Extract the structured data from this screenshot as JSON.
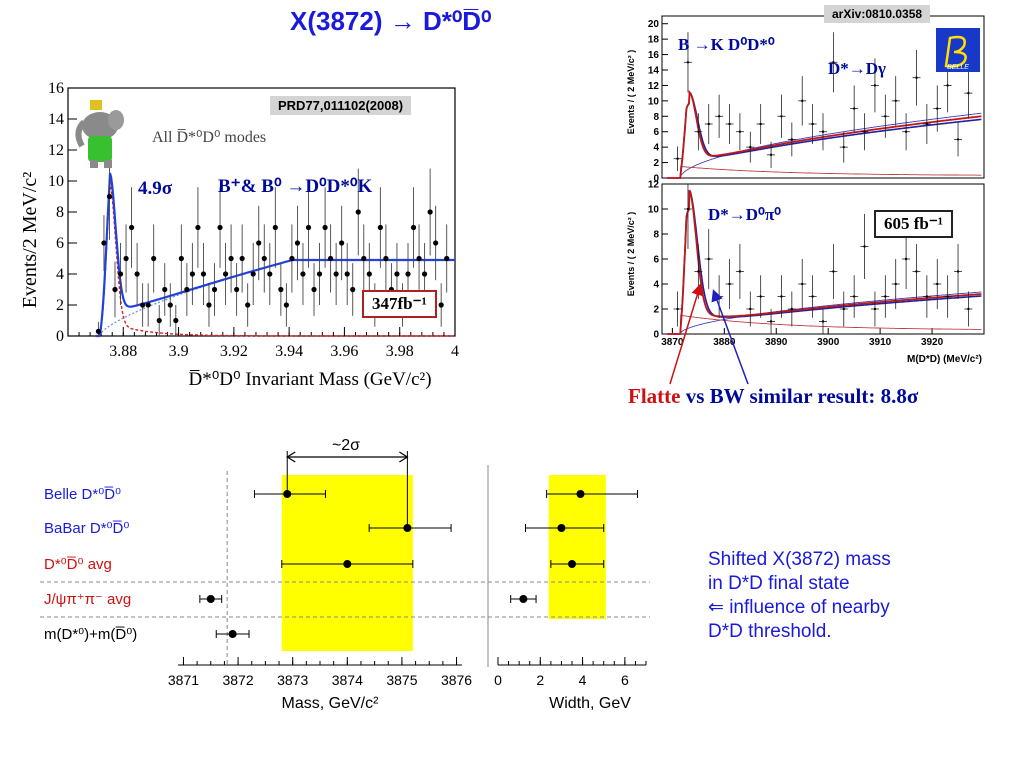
{
  "slide": {
    "title": "X(3872) → D*⁰D̅⁰",
    "conclusion_flatte": "Flatte",
    "conclusion_rest": " vs BW similar result: 8.8σ",
    "note_lines": [
      "Shifted X(3872) mass",
      "in D*D final state",
      "⇐ influence of nearby",
      "D*D threshold."
    ]
  },
  "chart_data": [
    {
      "id": "babar",
      "type": "scatter",
      "reference": "PRD77,011102(2008)",
      "legend_text": "All D̅*⁰D⁰ modes",
      "significance": "4.9σ",
      "channel": "B⁺& B⁰ →D⁰D*⁰K",
      "luminosity": "347fb⁻¹",
      "xlabel": "D̅*⁰D⁰ Invariant Mass (GeV/c²)",
      "ylabel": "Events/2 MeV/c²",
      "xlim": [
        3.86,
        4.0
      ],
      "ylim": [
        0,
        16
      ],
      "xticks": [
        "3.88",
        "3.9",
        "3.92",
        "3.94",
        "3.96",
        "3.98",
        "4"
      ],
      "yticks": [
        "0",
        "2",
        "4",
        "6",
        "8",
        "10",
        "12",
        "14",
        "16"
      ],
      "points": [
        [
          3.871,
          0.3,
          0.6
        ],
        [
          3.873,
          6.0,
          1.8
        ],
        [
          3.875,
          9.0,
          2.8
        ],
        [
          3.877,
          3.0,
          1.8
        ],
        [
          3.879,
          4.0,
          2.0
        ],
        [
          3.881,
          5.0,
          2.2
        ],
        [
          3.883,
          7.0,
          2.6
        ],
        [
          3.885,
          4.0,
          2.0
        ],
        [
          3.887,
          2.0,
          1.4
        ],
        [
          3.889,
          2.0,
          1.4
        ],
        [
          3.891,
          5.0,
          2.2
        ],
        [
          3.893,
          1.0,
          1.0
        ],
        [
          3.895,
          3.0,
          1.7
        ],
        [
          3.897,
          2.0,
          1.4
        ],
        [
          3.899,
          1.0,
          1.0
        ],
        [
          3.901,
          5.0,
          2.2
        ],
        [
          3.903,
          3.0,
          1.7
        ],
        [
          3.905,
          4.0,
          2.0
        ],
        [
          3.907,
          7.0,
          2.6
        ],
        [
          3.909,
          4.0,
          2.0
        ],
        [
          3.911,
          2.0,
          1.4
        ],
        [
          3.913,
          3.0,
          1.7
        ],
        [
          3.915,
          7.0,
          2.6
        ],
        [
          3.917,
          4.0,
          2.0
        ],
        [
          3.919,
          5.0,
          2.2
        ],
        [
          3.921,
          3.0,
          1.7
        ],
        [
          3.923,
          5.0,
          2.2
        ],
        [
          3.925,
          2.0,
          1.4
        ],
        [
          3.927,
          4.0,
          2.0
        ],
        [
          3.929,
          6.0,
          2.4
        ],
        [
          3.931,
          5.0,
          2.2
        ],
        [
          3.933,
          4.0,
          2.0
        ],
        [
          3.935,
          7.0,
          2.6
        ],
        [
          3.937,
          3.0,
          1.7
        ],
        [
          3.939,
          2.0,
          1.4
        ],
        [
          3.941,
          5.0,
          2.2
        ],
        [
          3.943,
          6.0,
          2.4
        ],
        [
          3.945,
          4.0,
          2.0
        ],
        [
          3.947,
          7.0,
          2.6
        ],
        [
          3.949,
          3.0,
          1.7
        ],
        [
          3.951,
          4.0,
          2.0
        ],
        [
          3.953,
          7.0,
          2.6
        ],
        [
          3.955,
          5.0,
          2.2
        ],
        [
          3.957,
          4.0,
          2.0
        ],
        [
          3.959,
          6.0,
          2.4
        ],
        [
          3.961,
          4.0,
          2.0
        ],
        [
          3.963,
          3.0,
          1.7
        ],
        [
          3.965,
          8.0,
          2.8
        ],
        [
          3.967,
          5.0,
          2.2
        ],
        [
          3.969,
          4.0,
          2.0
        ],
        [
          3.971,
          2.0,
          1.4
        ],
        [
          3.973,
          7.0,
          2.6
        ],
        [
          3.975,
          5.0,
          2.2
        ],
        [
          3.977,
          3.0,
          1.7
        ],
        [
          3.979,
          4.0,
          2.0
        ],
        [
          3.981,
          2.0,
          1.4
        ],
        [
          3.983,
          4.0,
          2.0
        ],
        [
          3.985,
          7.0,
          2.6
        ],
        [
          3.987,
          5.0,
          2.2
        ],
        [
          3.989,
          4.0,
          2.0
        ],
        [
          3.991,
          8.0,
          2.8
        ],
        [
          3.993,
          6.0,
          2.4
        ],
        [
          3.995,
          2.0,
          1.4
        ],
        [
          3.997,
          5.0,
          2.2
        ]
      ],
      "colors": {
        "fit": "#2040e0",
        "signal": "#e02020",
        "background": "#7090e0",
        "total_peak": "#8020a0"
      }
    },
    {
      "id": "belle-dgamma",
      "type": "scatter",
      "reference": "arXiv:0810.0358",
      "logo_text": "BELLE",
      "channel": "B →K D⁰D*⁰",
      "subchannel": "D*→Dγ",
      "ylabel": "Events / ( 2 MeV/c² )",
      "xlim": [
        3868,
        3930
      ],
      "ylim": [
        0,
        21
      ],
      "yticks": [
        "0",
        "2",
        "4",
        "6",
        "8",
        "10",
        "12",
        "14",
        "16",
        "18",
        "20"
      ],
      "points": [
        [
          3871,
          2.5,
          1.6
        ],
        [
          3873,
          15,
          3.9
        ],
        [
          3875,
          6,
          2.4
        ],
        [
          3877,
          7,
          2.6
        ],
        [
          3879,
          8,
          2.8
        ],
        [
          3881,
          7,
          2.6
        ],
        [
          3883,
          6,
          2.4
        ],
        [
          3885,
          4,
          2.0
        ],
        [
          3887,
          7,
          2.6
        ],
        [
          3889,
          3,
          1.7
        ],
        [
          3891,
          8,
          2.8
        ],
        [
          3893,
          5,
          2.2
        ],
        [
          3895,
          10,
          3.2
        ],
        [
          3897,
          7,
          2.6
        ],
        [
          3899,
          6,
          2.4
        ],
        [
          3901,
          15,
          3.9
        ],
        [
          3903,
          4,
          2.0
        ],
        [
          3905,
          9,
          3.0
        ],
        [
          3907,
          6,
          2.4
        ],
        [
          3909,
          12,
          3.5
        ],
        [
          3911,
          8,
          2.8
        ],
        [
          3913,
          10,
          3.2
        ],
        [
          3915,
          6,
          2.4
        ],
        [
          3917,
          13,
          3.6
        ],
        [
          3919,
          7,
          2.6
        ],
        [
          3921,
          9,
          3.0
        ],
        [
          3923,
          12,
          3.5
        ],
        [
          3925,
          5,
          2.2
        ],
        [
          3927,
          11,
          3.3
        ]
      ],
      "colors": {
        "fit": "#c01818",
        "fit2": "#2020a0"
      }
    },
    {
      "id": "belle-dpi0",
      "type": "scatter",
      "subchannel": "D*→D⁰π⁰",
      "luminosity": "605 fb⁻¹",
      "xlabel": "M(D*D) (MeV/c²)",
      "ylabel": "Events / ( 2 MeV/c² )",
      "xlim": [
        3868,
        3930
      ],
      "ylim": [
        0,
        12
      ],
      "xticks": [
        "3870",
        "3880",
        "3890",
        "3900",
        "3910",
        "3920"
      ],
      "yticks": [
        "0",
        "2",
        "4",
        "6",
        "8",
        "10",
        "12"
      ],
      "points": [
        [
          3871,
          2,
          1.4
        ],
        [
          3873,
          10,
          3.2
        ],
        [
          3875,
          5,
          2.2
        ],
        [
          3877,
          6,
          2.4
        ],
        [
          3879,
          3,
          1.7
        ],
        [
          3881,
          4,
          2.0
        ],
        [
          3883,
          5,
          2.2
        ],
        [
          3885,
          2,
          1.4
        ],
        [
          3887,
          3,
          1.7
        ],
        [
          3889,
          1,
          1.0
        ],
        [
          3891,
          3,
          1.7
        ],
        [
          3893,
          2,
          1.4
        ],
        [
          3895,
          4,
          2.0
        ],
        [
          3897,
          3,
          1.7
        ],
        [
          3899,
          1,
          1.0
        ],
        [
          3901,
          5,
          2.2
        ],
        [
          3903,
          2,
          1.4
        ],
        [
          3905,
          3,
          1.7
        ],
        [
          3907,
          7,
          2.6
        ],
        [
          3909,
          2,
          1.4
        ],
        [
          3911,
          3,
          1.7
        ],
        [
          3913,
          4,
          2.0
        ],
        [
          3915,
          6,
          2.4
        ],
        [
          3917,
          5,
          2.2
        ],
        [
          3919,
          3,
          1.7
        ],
        [
          3921,
          4,
          2.0
        ],
        [
          3923,
          3,
          1.7
        ],
        [
          3925,
          5,
          2.2
        ],
        [
          3927,
          2,
          1.4
        ]
      ],
      "colors": {
        "fit": "#c01818",
        "fit2": "#2020a0"
      }
    },
    {
      "id": "summary",
      "type": "scatter",
      "annotation": "~2σ",
      "rows": [
        {
          "label": "Belle D*⁰D̅⁰",
          "color": "#1a1adc",
          "mass": 3872.9,
          "mass_err": [
            0.6,
            0.7
          ],
          "width": 3.9,
          "width_err": [
            1.6,
            2.7
          ]
        },
        {
          "label": "BaBar D*⁰D̅⁰",
          "color": "#1a1adc",
          "mass": 3875.1,
          "mass_err": [
            0.7,
            0.8
          ],
          "width": 3.0,
          "width_err": [
            1.7,
            2.0
          ]
        },
        {
          "label": "D*⁰D̅⁰ avg",
          "color": "#d01010",
          "mass": 3874.0,
          "mass_err": [
            1.2,
            1.2
          ],
          "width": 3.5,
          "width_err": [
            1.0,
            1.5
          ]
        },
        {
          "label": "J/ψπ⁺π⁻ avg",
          "color": "#d01010",
          "mass": 3871.5,
          "mass_err": [
            0.2,
            0.2
          ],
          "width": 1.2,
          "width_err": [
            0.6,
            0.6
          ]
        },
        {
          "label": "m(D*⁰)+m(D̅⁰)",
          "color": "#000000",
          "mass": 3871.9,
          "mass_err": [
            0.3,
            0.3
          ],
          "width": null,
          "width_err": null
        }
      ],
      "mass_axis": {
        "label": "Mass, GeV/c²",
        "range": [
          3870.9,
          3876.1
        ],
        "ticks": [
          "3871",
          "3872",
          "3873",
          "3874",
          "3875",
          "3876"
        ]
      },
      "width_axis": {
        "label": "Width, GeV",
        "range": [
          0,
          7
        ],
        "ticks": [
          "0",
          "2",
          "4",
          "6"
        ]
      },
      "mass_band": [
        3872.8,
        3875.2
      ],
      "width_band": [
        2.4,
        5.1
      ],
      "threshold_mass": 3871.8,
      "colors": {
        "band": "#ffff00"
      }
    }
  ]
}
